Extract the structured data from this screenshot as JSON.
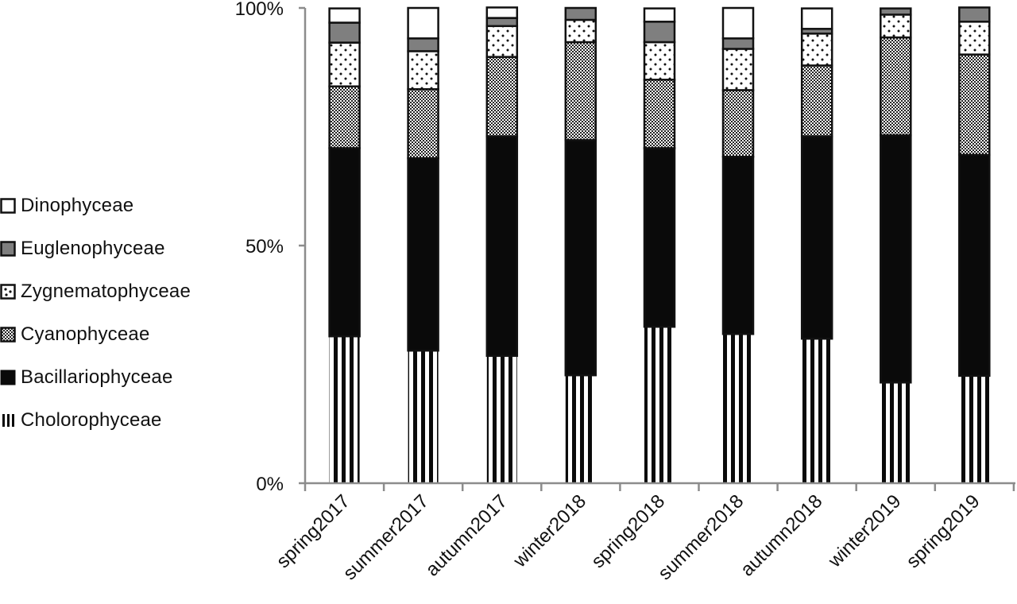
{
  "chart_data": {
    "type": "bar",
    "stacked": true,
    "normalized_percent": true,
    "title": "",
    "xlabel": "",
    "ylabel": "",
    "ylim": [
      0,
      100
    ],
    "y_ticks": [
      "0%",
      "50%",
      "100%"
    ],
    "grid": false,
    "legend_position": "left",
    "categories": [
      "spring2017",
      "summer2017",
      "autumn2017",
      "winter2018",
      "spring2018",
      "summer2018",
      "autumn2018",
      "winter2019",
      "spring2019"
    ],
    "series": [
      {
        "name": "Cholorophyceae",
        "pattern": "vertical-stripes",
        "values": [
          30.9,
          27.9,
          26.8,
          22.7,
          32.9,
          31.4,
          30.4,
          21.2,
          22.6
        ]
      },
      {
        "name": "Bacillariophyceae",
        "pattern": "solid-black",
        "values": [
          39.6,
          40.5,
          46.2,
          49.5,
          37.6,
          37.3,
          42.6,
          52.0,
          46.5
        ]
      },
      {
        "name": "Cyanophyceae",
        "pattern": "checker",
        "values": [
          13.0,
          14.5,
          16.7,
          20.6,
          14.4,
          14.0,
          14.9,
          20.6,
          21.1
        ]
      },
      {
        "name": "Zygnematophyceae",
        "pattern": "dots",
        "values": [
          9.2,
          8.0,
          6.5,
          4.7,
          7.9,
          8.7,
          6.7,
          4.8,
          6.9
        ]
      },
      {
        "name": "Euglenophyceae",
        "pattern": "solid-gray",
        "values": [
          4.2,
          2.7,
          1.7,
          2.5,
          4.3,
          2.2,
          1.0,
          1.3,
          3.0
        ]
      },
      {
        "name": "Dinophyceae",
        "pattern": "solid-white",
        "values": [
          3.0,
          6.4,
          2.2,
          0.0,
          2.8,
          6.4,
          4.3,
          0.0,
          0.0
        ]
      }
    ],
    "legend_order": [
      "Dinophyceae",
      "Euglenophyceae",
      "Zygnematophyceae",
      "Cyanophyceae",
      "Bacillariophyceae",
      "Cholorophyceae"
    ]
  },
  "colors": {
    "axis": "#8c8c8c",
    "bar_outline": "#111111",
    "black": "#0a0a0a",
    "gray": "#7f7f7f",
    "white": "#ffffff"
  }
}
